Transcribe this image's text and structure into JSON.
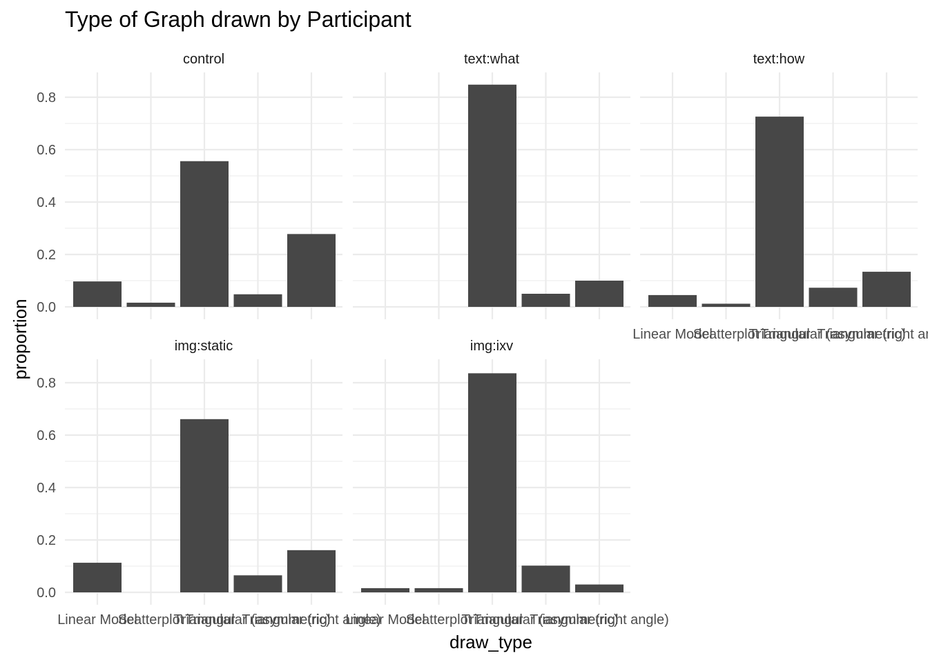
{
  "chart_data": {
    "type": "bar",
    "title": "Type of Graph drawn by Participant",
    "xlabel": "draw_type",
    "ylabel": "proportion",
    "ylim": [
      0,
      0.9
    ],
    "yticks": [
      "0.0",
      "0.2",
      "0.4",
      "0.6",
      "0.8"
    ],
    "ytick_values": [
      0,
      0.2,
      0.4,
      0.6,
      0.8
    ],
    "categories": [
      "Linear Model",
      "Scatterplot",
      "Triangular",
      "Triangular (asymmetric)",
      "Triangular (right angle)"
    ],
    "grid": true,
    "bar_color": "#474747",
    "grid_color": "#ebebeb",
    "facets": [
      {
        "name": "control",
        "values": [
          0.097,
          0.016,
          0.556,
          0.048,
          0.278
        ]
      },
      {
        "name": "text:what",
        "values": [
          0.0,
          0.0,
          0.848,
          0.05,
          0.1
        ]
      },
      {
        "name": "text:how",
        "values": [
          0.045,
          0.012,
          0.726,
          0.073,
          0.134
        ]
      },
      {
        "name": "img:static",
        "values": [
          0.113,
          0.0,
          0.661,
          0.065,
          0.161
        ]
      },
      {
        "name": "img:ixv",
        "values": [
          0.016,
          0.016,
          0.836,
          0.102,
          0.03
        ]
      }
    ]
  }
}
